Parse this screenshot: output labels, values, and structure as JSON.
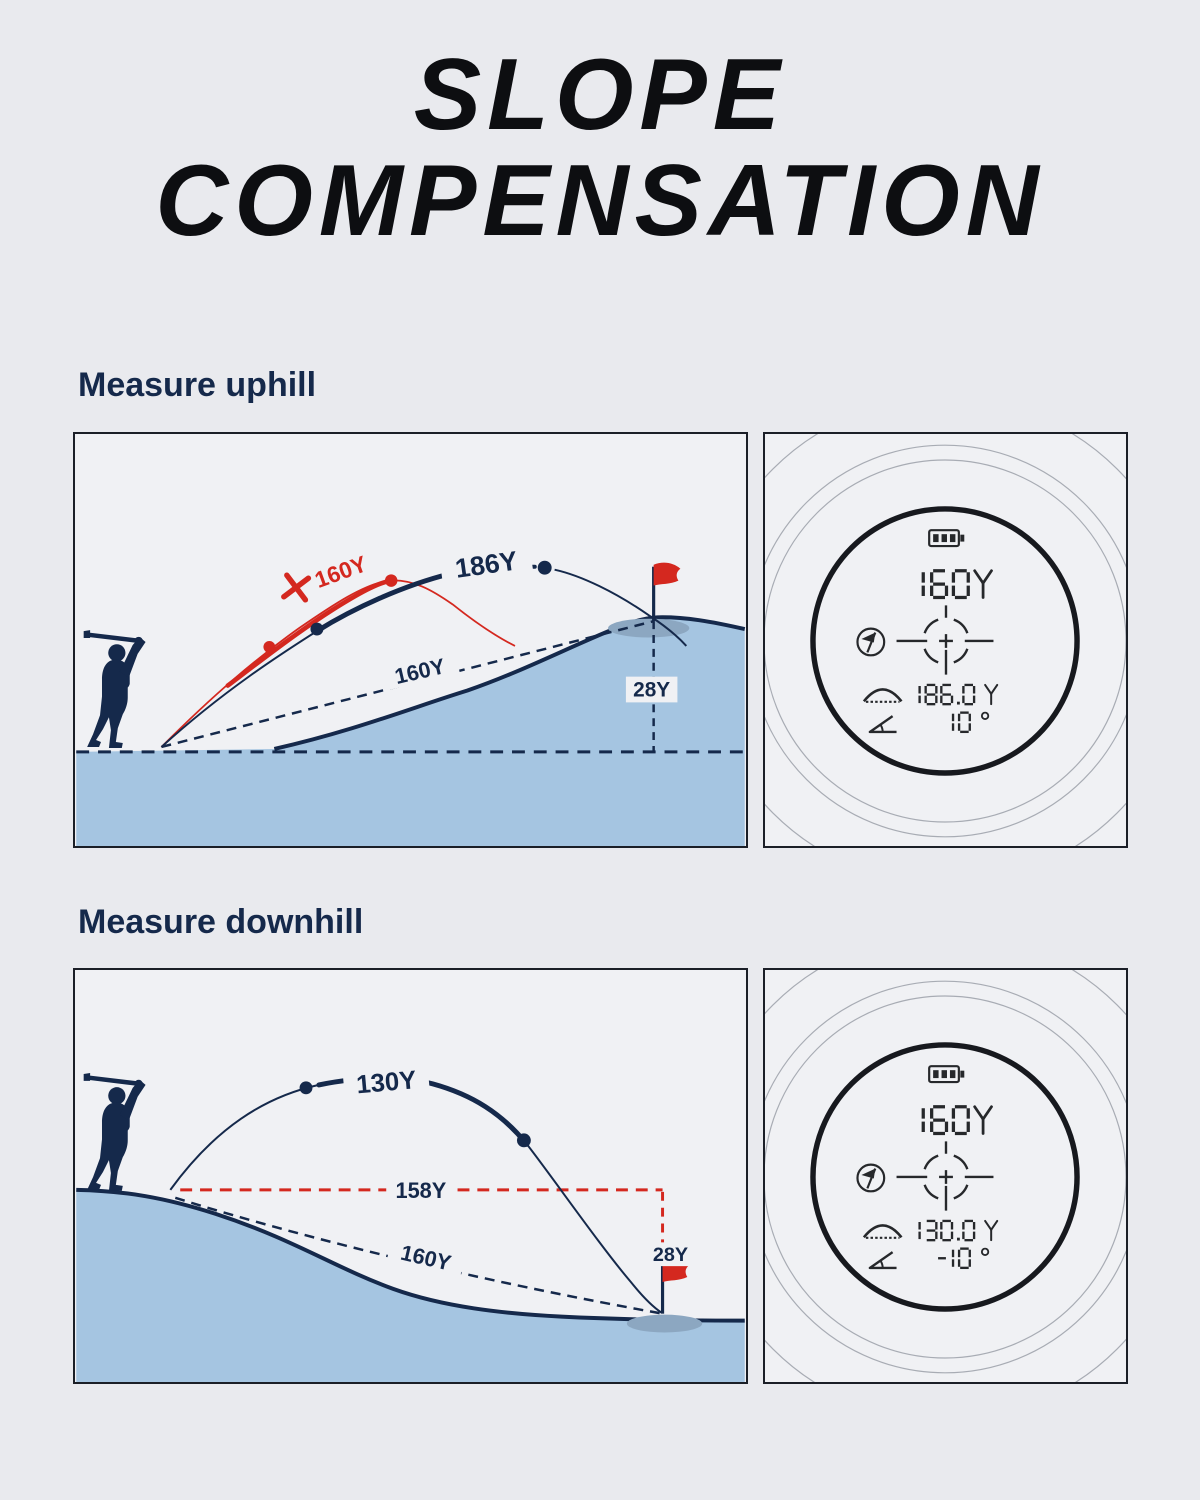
{
  "title": {
    "line1": "SLOPE",
    "line2": "COMPENSATION"
  },
  "uphill": {
    "heading": "Measure uphill",
    "diagram": {
      "uncompensated_shot_label": "160Y",
      "compensated_shot_label": "186Y",
      "line_of_sight_label": "160Y",
      "elevation_label": "28Y",
      "icons": [
        "golfer-silhouette",
        "red-x-mark",
        "flag",
        "hill"
      ]
    },
    "display": {
      "distance": "160Y",
      "slope_adjusted_distance": "186.0 Y",
      "angle": "10 °",
      "icons": [
        "battery-icon",
        "flag-lock-icon",
        "crosshair-reticle",
        "slope-icon",
        "angle-icon"
      ]
    }
  },
  "downhill": {
    "heading": "Measure downhill",
    "diagram": {
      "compensated_shot_label": "130Y",
      "horizontal_distance_label": "158Y",
      "line_of_sight_label": "160Y",
      "elevation_label": "28Y",
      "icons": [
        "golfer-silhouette",
        "flag",
        "hill"
      ]
    },
    "display": {
      "distance": "160Y",
      "slope_adjusted_distance": "130.0 Y",
      "angle": "-10 °",
      "icons": [
        "battery-icon",
        "flag-lock-icon",
        "crosshair-reticle",
        "slope-icon",
        "angle-icon"
      ]
    }
  },
  "colors": {
    "page_background": "#e9eaee",
    "panel_background": "#f0f1f4",
    "navy": "#15294b",
    "red": "#d4281f",
    "hill_blue": "#a5c5e1",
    "flag_shadow": "#8ca7c1",
    "lcd": "#26282b",
    "ring_gray": "#a8acb4"
  }
}
